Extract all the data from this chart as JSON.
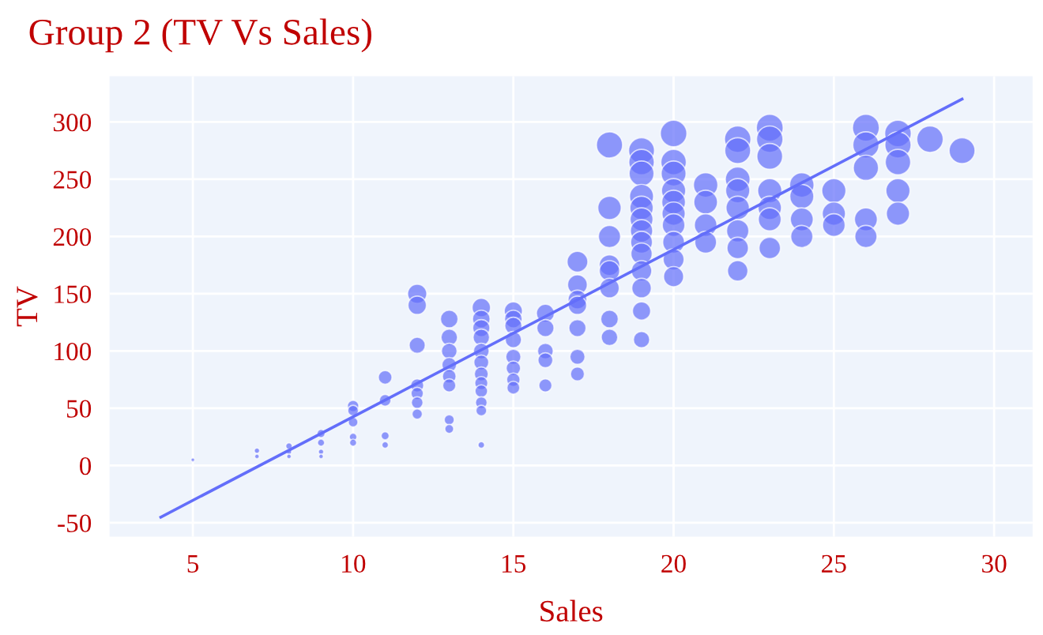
{
  "chart_data": {
    "type": "bubble",
    "title": "Group 2 (TV Vs Sales)",
    "xlabel": "Sales",
    "ylabel": "TV",
    "xlim": [
      2.4,
      31.2
    ],
    "ylim": [
      -62,
      340
    ],
    "xticks": [
      5,
      10,
      15,
      20,
      25,
      30
    ],
    "yticks": [
      -50,
      0,
      50,
      100,
      150,
      200,
      250,
      300
    ],
    "grid": true,
    "series": [
      {
        "color": "#636efa",
        "x": [
          5,
          7,
          7,
          8,
          8,
          8,
          9,
          9,
          9,
          9,
          10,
          10,
          10,
          10,
          10,
          11,
          11,
          11,
          11,
          12,
          12,
          12,
          12,
          12,
          12,
          12,
          13,
          13,
          13,
          13,
          13,
          13,
          13,
          13,
          14,
          14,
          14,
          14,
          14,
          14,
          14,
          14,
          14,
          14,
          14,
          14,
          15,
          15,
          15,
          15,
          15,
          15,
          15,
          15,
          16,
          16,
          16,
          16,
          16,
          17,
          17,
          17,
          17,
          17,
          17,
          17,
          18,
          18,
          18,
          18,
          18,
          18,
          18,
          18,
          19,
          19,
          19,
          19,
          19,
          19,
          19,
          19,
          19,
          19,
          19,
          19,
          19,
          20,
          20,
          20,
          20,
          20,
          20,
          20,
          20,
          20,
          20,
          21,
          21,
          21,
          21,
          22,
          22,
          22,
          22,
          22,
          22,
          22,
          22,
          23,
          23,
          23,
          23,
          23,
          23,
          23,
          24,
          24,
          24,
          24,
          25,
          25,
          25,
          26,
          26,
          26,
          26,
          26,
          27,
          27,
          27,
          27,
          27,
          28,
          29
        ],
        "values": [
          5,
          13,
          8,
          17,
          12,
          8,
          28,
          20,
          12,
          8,
          52,
          48,
          38,
          25,
          20,
          77,
          57,
          26,
          18,
          150,
          140,
          105,
          70,
          63,
          55,
          45,
          128,
          112,
          100,
          88,
          78,
          70,
          40,
          32,
          138,
          128,
          120,
          112,
          100,
          90,
          80,
          72,
          65,
          55,
          48,
          18,
          135,
          128,
          122,
          110,
          95,
          85,
          75,
          68,
          133,
          120,
          100,
          92,
          70,
          178,
          158,
          145,
          140,
          120,
          95,
          80,
          280,
          225,
          200,
          175,
          170,
          155,
          128,
          112,
          275,
          265,
          255,
          235,
          225,
          215,
          205,
          195,
          185,
          170,
          155,
          135,
          110,
          290,
          265,
          255,
          240,
          230,
          220,
          210,
          195,
          180,
          165,
          245,
          230,
          210,
          195,
          285,
          275,
          250,
          240,
          225,
          205,
          190,
          170,
          295,
          285,
          270,
          240,
          225,
          215,
          190,
          245,
          235,
          215,
          200,
          240,
          220,
          210,
          295,
          280,
          260,
          215,
          200,
          290,
          280,
          265,
          240,
          220,
          285,
          275
        ],
        "sizes": [
          0.02,
          0.04,
          0.03,
          0.06,
          0.04,
          0.03,
          0.09,
          0.07,
          0.04,
          0.03,
          0.18,
          0.16,
          0.13,
          0.08,
          0.07,
          0.26,
          0.19,
          0.09,
          0.06,
          0.51,
          0.47,
          0.36,
          0.24,
          0.21,
          0.19,
          0.15,
          0.43,
          0.38,
          0.34,
          0.3,
          0.26,
          0.24,
          0.14,
          0.11,
          0.47,
          0.43,
          0.41,
          0.38,
          0.34,
          0.31,
          0.27,
          0.24,
          0.22,
          0.19,
          0.16,
          0.06,
          0.46,
          0.43,
          0.41,
          0.37,
          0.32,
          0.29,
          0.25,
          0.23,
          0.45,
          0.41,
          0.34,
          0.31,
          0.24,
          0.6,
          0.54,
          0.49,
          0.47,
          0.41,
          0.32,
          0.27,
          0.95,
          0.76,
          0.68,
          0.59,
          0.58,
          0.53,
          0.43,
          0.38,
          0.93,
          0.9,
          0.86,
          0.8,
          0.76,
          0.73,
          0.69,
          0.66,
          0.63,
          0.58,
          0.53,
          0.46,
          0.37,
          0.98,
          0.9,
          0.86,
          0.81,
          0.78,
          0.75,
          0.71,
          0.66,
          0.61,
          0.56,
          0.83,
          0.78,
          0.71,
          0.66,
          0.97,
          0.93,
          0.85,
          0.81,
          0.76,
          0.69,
          0.64,
          0.58,
          1,
          0.97,
          0.92,
          0.81,
          0.76,
          0.73,
          0.64,
          0.83,
          0.8,
          0.73,
          0.68,
          0.81,
          0.75,
          0.71,
          1,
          0.95,
          0.88,
          0.73,
          0.68,
          0.98,
          0.95,
          0.9,
          0.81,
          0.75,
          0.97,
          0.93
        ]
      },
      {
        "type": "line",
        "color": "#636efa",
        "x": [
          4,
          29
        ],
        "values": [
          -45,
          320
        ]
      }
    ]
  }
}
